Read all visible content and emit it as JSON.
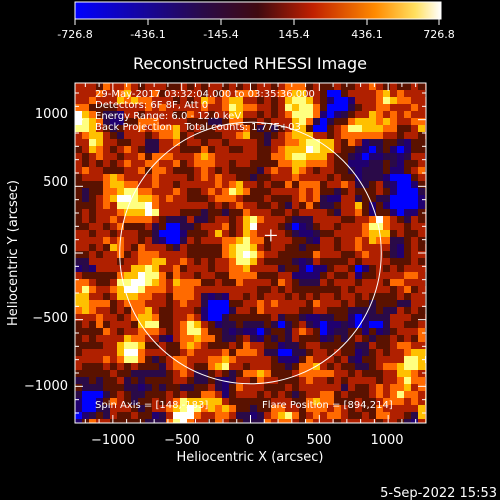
{
  "colorbar": {
    "tick_labels": [
      "-726.8",
      "-436.1",
      "-145.4",
      "145.4",
      "436.1",
      "726.8"
    ],
    "range": [
      -726.8,
      726.8
    ]
  },
  "plot": {
    "title": "Reconstructed RHESSI Image",
    "info_lines": [
      "29-May-2017 03:32:04.000 to 03:35:36.000",
      "Detectors: 6F 8F, Att 0",
      "Energy Range: 6.0 - 12.0 keV",
      "Back Projection    Total counts: 1.77E+03"
    ],
    "spin_axis": "Spin Axis = [148,-183]",
    "flare_position": "Flare Position = [894,214]",
    "timestamp": "5-Sep-2022 15:53"
  },
  "chart_data": {
    "type": "heatmap",
    "title": "Reconstructed RHESSI Image",
    "xlabel": "Heliocentric X (arcsec)",
    "ylabel": "Heliocentric Y (arcsec)",
    "xlim": [
      -1275,
      1275
    ],
    "ylim": [
      -1275,
      1275
    ],
    "x_ticks": [
      -1000,
      -500,
      0,
      500,
      1000
    ],
    "y_ticks": [
      -1000,
      -500,
      0,
      500,
      1000
    ],
    "x_tick_labels": [
      "−1000",
      "−500",
      "0",
      "500",
      "1000"
    ],
    "y_tick_labels": [
      "−1000",
      "−500",
      "0",
      "500",
      "1000"
    ],
    "value_range": [
      -726.8,
      726.8
    ],
    "solar_limb_radius": 950,
    "center_marker": [
      148,
      -183
    ],
    "colormap": [
      "#0000ff",
      "#200070",
      "#2a0a48",
      "#5a1200",
      "#b02000",
      "#ff6a00",
      "#ffc000",
      "#ffff80",
      "#ffffff"
    ]
  }
}
